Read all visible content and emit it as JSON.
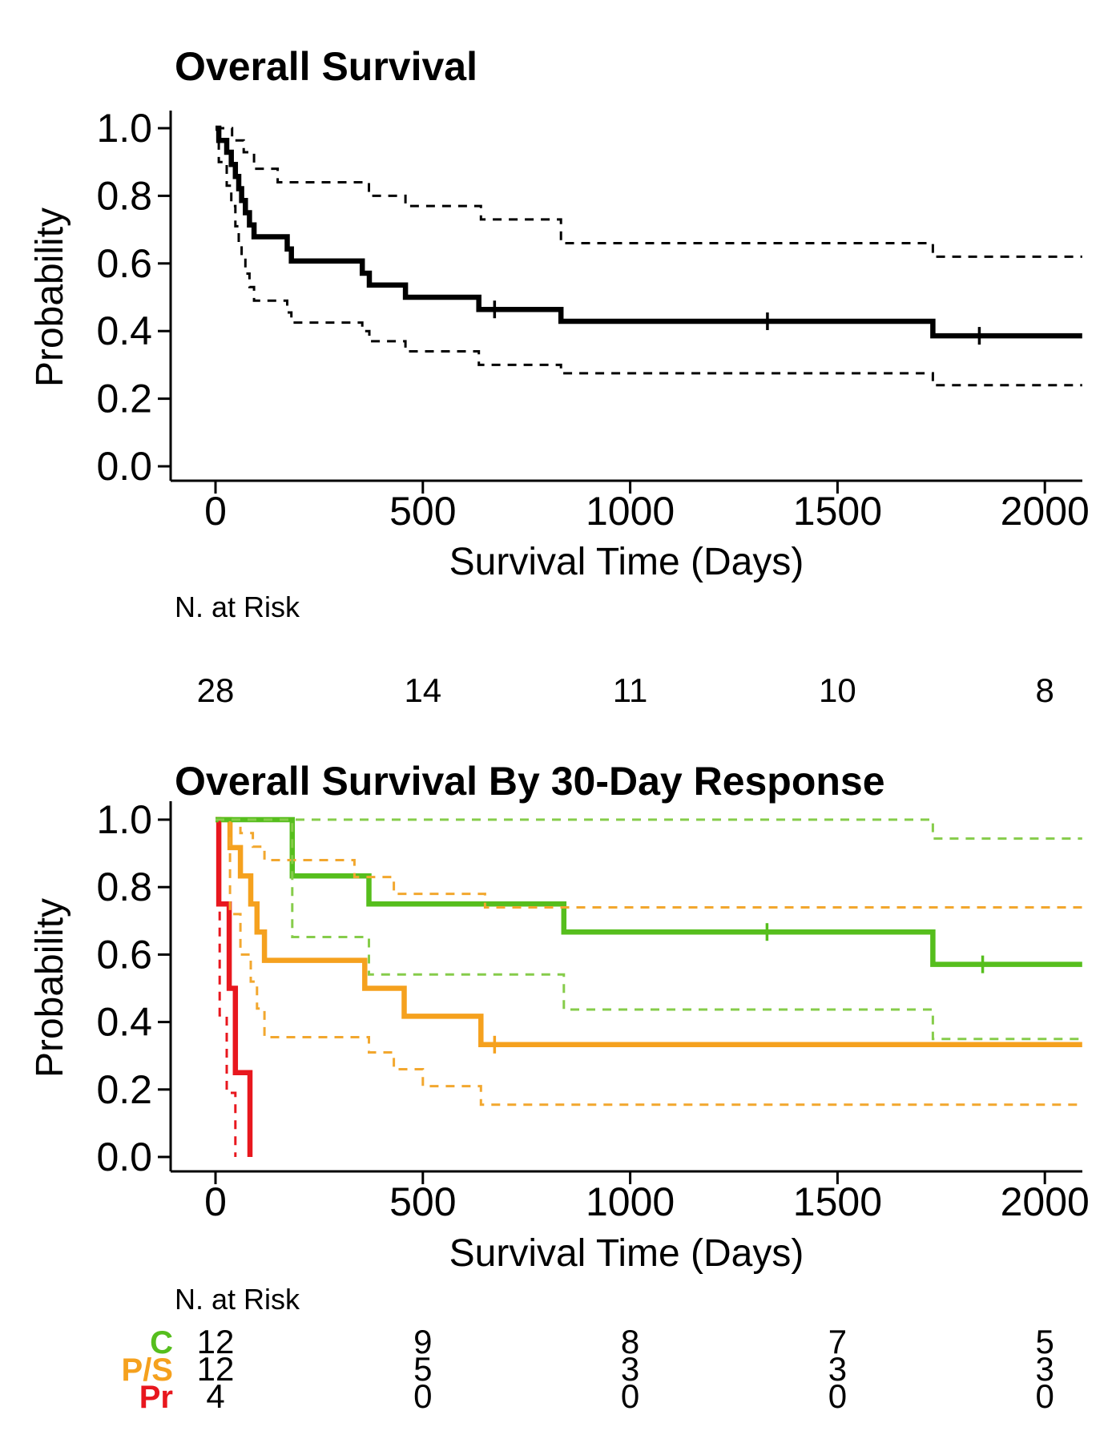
{
  "figure_type": "kaplan-meier-survival-figure",
  "chart_data": [
    {
      "type": "line",
      "subtype": "kaplan-meier-step",
      "title": "Overall Survival",
      "xlabel": "Survival Time (Days)",
      "ylabel": "Probability",
      "xlim": [
        0,
        2090
      ],
      "ylim": [
        0.0,
        1.0
      ],
      "grid": false,
      "legend_position": "none",
      "xticks": [
        "0",
        "500",
        "1000",
        "1500",
        "2000"
      ],
      "xtick_values": [
        0,
        500,
        1000,
        1500,
        2000
      ],
      "yticks": [
        "1.0",
        "0.8",
        "0.6",
        "0.4",
        "0.2",
        "0.0"
      ],
      "ytick_values": [
        1.0,
        0.8,
        0.6,
        0.4,
        0.2,
        0.0
      ],
      "series": [
        {
          "name": "overall-survival",
          "legend": "",
          "color": "#000000",
          "style": "solid",
          "width": 6.5,
          "points": [
            [
              0,
              1.0
            ],
            [
              8,
              0.964
            ],
            [
              27,
              0.929
            ],
            [
              38,
              0.893
            ],
            [
              48,
              0.857
            ],
            [
              56,
              0.821
            ],
            [
              63,
              0.786
            ],
            [
              72,
              0.75
            ],
            [
              82,
              0.714
            ],
            [
              93,
              0.679
            ],
            [
              173,
              0.643
            ],
            [
              183,
              0.607
            ],
            [
              354,
              0.571
            ],
            [
              371,
              0.536
            ],
            [
              458,
              0.5
            ],
            [
              635,
              0.464
            ],
            [
              833,
              0.429
            ],
            [
              1730,
              0.386
            ],
            [
              2090,
              0.386
            ]
          ]
        },
        {
          "name": "overall-survival-ci-upper",
          "legend": "95% CI upper",
          "color": "#000000",
          "style": "dashed",
          "width": 3,
          "points": [
            [
              0,
              1.0
            ],
            [
              40,
              0.964
            ],
            [
              68,
              0.929
            ],
            [
              93,
              0.88
            ],
            [
              150,
              0.84
            ],
            [
              370,
              0.8
            ],
            [
              458,
              0.77
            ],
            [
              640,
              0.73
            ],
            [
              833,
              0.66
            ],
            [
              1730,
              0.62
            ],
            [
              2090,
              0.62
            ]
          ]
        },
        {
          "name": "overall-survival-ci-lower",
          "legend": "95% CI lower",
          "color": "#000000",
          "style": "dashed",
          "width": 3,
          "points": [
            [
              0,
              1.0
            ],
            [
              8,
              0.9
            ],
            [
              27,
              0.83
            ],
            [
              38,
              0.77
            ],
            [
              48,
              0.71
            ],
            [
              56,
              0.66
            ],
            [
              63,
              0.615
            ],
            [
              72,
              0.57
            ],
            [
              82,
              0.53
            ],
            [
              93,
              0.49
            ],
            [
              173,
              0.455
            ],
            [
              183,
              0.425
            ],
            [
              354,
              0.4
            ],
            [
              371,
              0.37
            ],
            [
              458,
              0.34
            ],
            [
              635,
              0.3
            ],
            [
              833,
              0.275
            ],
            [
              1730,
              0.24
            ],
            [
              2090,
              0.24
            ]
          ]
        }
      ],
      "censor_marks": [
        {
          "series": "overall-survival",
          "color": "#000000",
          "points": [
            [
              673,
              0.464
            ],
            [
              1331,
              0.429
            ],
            [
              1842,
              0.386
            ]
          ]
        }
      ],
      "risk_table": {
        "header": "N. at Risk",
        "times": [
          0,
          500,
          1000,
          1500,
          2000
        ],
        "rows": [
          {
            "label": "",
            "color": "#000000",
            "counts": [
              "28",
              "14",
              "11",
              "10",
              "8"
            ]
          }
        ]
      }
    },
    {
      "type": "line",
      "subtype": "kaplan-meier-step",
      "title": "Overall Survival By 30-Day Response",
      "xlabel": "Survival Time (Days)",
      "ylabel": "Probability",
      "xlim": [
        0,
        2090
      ],
      "ylim": [
        0.0,
        1.0
      ],
      "grid": false,
      "legend_position": "risk-table-row-labels",
      "xticks": [
        "0",
        "500",
        "1000",
        "1500",
        "2000"
      ],
      "xtick_values": [
        0,
        500,
        1000,
        1500,
        2000
      ],
      "yticks": [
        "1.0",
        "0.8",
        "0.6",
        "0.4",
        "0.2",
        "0.0"
      ],
      "ytick_values": [
        1.0,
        0.8,
        0.6,
        0.4,
        0.2,
        0.0
      ],
      "series": [
        {
          "name": "progressive-pr",
          "legend": "Pr",
          "color": "#E8171E",
          "style": "solid",
          "width": 6.5,
          "points": [
            [
              0,
              1.0
            ],
            [
              8,
              0.75
            ],
            [
              33,
              0.5
            ],
            [
              48,
              0.25
            ],
            [
              83,
              0.0
            ]
          ]
        },
        {
          "name": "partial-stable-ps",
          "legend": "P/S",
          "color": "#F5A11E",
          "style": "solid",
          "width": 6.5,
          "points": [
            [
              0,
              1.0
            ],
            [
              35,
              0.917
            ],
            [
              60,
              0.833
            ],
            [
              85,
              0.75
            ],
            [
              100,
              0.667
            ],
            [
              118,
              0.583
            ],
            [
              360,
              0.5
            ],
            [
              455,
              0.417
            ],
            [
              640,
              0.333
            ],
            [
              2090,
              0.333
            ]
          ]
        },
        {
          "name": "complete-c",
          "legend": "C",
          "color": "#56BE1D",
          "style": "solid",
          "width": 6.5,
          "points": [
            [
              0,
              1.0
            ],
            [
              185,
              0.833
            ],
            [
              370,
              0.75
            ],
            [
              840,
              0.667
            ],
            [
              1730,
              0.571
            ],
            [
              2090,
              0.571
            ]
          ]
        },
        {
          "name": "progressive-ci-lower",
          "legend": "Pr 95% CI lower",
          "color": "#E8171E",
          "style": "dashed",
          "width": 3,
          "points": [
            [
              0,
              1.0
            ],
            [
              10,
              0.42
            ],
            [
              27,
              0.19
            ],
            [
              48,
              0.0
            ]
          ]
        },
        {
          "name": "partial-stable-ci-upper",
          "legend": "P/S 95% CI upper",
          "color": "#F2A72E",
          "style": "dashed",
          "width": 3,
          "points": [
            [
              0,
              1.0
            ],
            [
              60,
              0.96
            ],
            [
              90,
              0.92
            ],
            [
              118,
              0.88
            ],
            [
              335,
              0.83
            ],
            [
              430,
              0.78
            ],
            [
              650,
              0.74
            ],
            [
              2090,
              0.74
            ]
          ]
        },
        {
          "name": "partial-stable-ci-lower",
          "legend": "P/S 95% CI lower",
          "color": "#F2A72E",
          "style": "dashed",
          "width": 3,
          "points": [
            [
              0,
              1.0
            ],
            [
              35,
              0.72
            ],
            [
              60,
              0.6
            ],
            [
              85,
              0.52
            ],
            [
              100,
              0.44
            ],
            [
              118,
              0.355
            ],
            [
              370,
              0.31
            ],
            [
              430,
              0.26
            ],
            [
              500,
              0.21
            ],
            [
              640,
              0.155
            ],
            [
              2090,
              0.155
            ]
          ]
        },
        {
          "name": "complete-ci-upper",
          "legend": "C 95% CI upper",
          "color": "#86CC4A",
          "style": "dashed",
          "width": 3,
          "points": [
            [
              0,
              1.0
            ],
            [
              1730,
              0.944
            ],
            [
              2090,
              0.944
            ]
          ]
        },
        {
          "name": "complete-ci-lower",
          "legend": "C 95% CI lower",
          "color": "#86CC4A",
          "style": "dashed",
          "width": 3,
          "points": [
            [
              0,
              1.0
            ],
            [
              185,
              0.652
            ],
            [
              370,
              0.541
            ],
            [
              840,
              0.437
            ],
            [
              1730,
              0.35
            ],
            [
              2090,
              0.35
            ]
          ]
        }
      ],
      "censor_marks": [
        {
          "series": "complete-c",
          "color": "#56BE1D",
          "points": [
            [
              1330,
              0.667
            ],
            [
              1850,
              0.571
            ]
          ]
        },
        {
          "series": "partial-stable-ps",
          "color": "#F5A11E",
          "points": [
            [
              673,
              0.333
            ]
          ]
        }
      ],
      "risk_table": {
        "header": "N. at Risk",
        "times": [
          0,
          500,
          1000,
          1500,
          2000
        ],
        "rows": [
          {
            "label": "C",
            "color": "#56BE1D",
            "counts": [
              "12",
              "9",
              "8",
              "7",
              "5"
            ]
          },
          {
            "label": "P/S",
            "color": "#F5A11E",
            "counts": [
              "12",
              "5",
              "3",
              "3",
              "3"
            ]
          },
          {
            "label": "Pr",
            "color": "#E8171E",
            "counts": [
              "4",
              "0",
              "0",
              "0",
              "0"
            ]
          }
        ]
      }
    }
  ],
  "colors": {
    "overall": "#000000",
    "complete_response": "#56BE1D",
    "partial_stable": "#F5A11E",
    "progressive": "#E8171E",
    "background": "#FFFFFF"
  }
}
